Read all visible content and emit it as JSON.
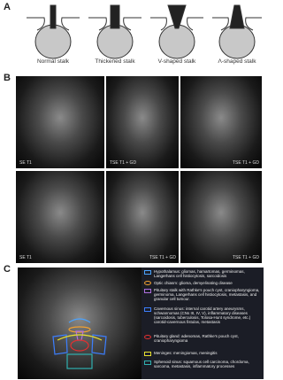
{
  "panels": {
    "a": {
      "label": "A",
      "stalks": [
        "Normal stalk",
        "Thickened stalk",
        "V-shaped stalk",
        "Λ-shaped stalk"
      ]
    },
    "b": {
      "label": "B",
      "images": [
        [
          "SE T1",
          "TSE T1 + GD",
          "TSE T1 + GD"
        ],
        [
          "SE T1",
          "TSE T1 + GD",
          "TSE T1 + GD"
        ]
      ]
    },
    "c": {
      "label": "C",
      "legend": [
        "Hypothalamus: gliomas, hamartomas, germinomas, Langerhans cell histiocytosis, sarcoidosis",
        "Optic chiasm: glioma, demyelinating disease",
        "Pituitary stalk with Rathke's pouch cyst, craniopharyngioma, germinoma, Langerhans cell histiocytosis, metastasis, and granular cell tumour.",
        "Cavernous sinus: internal carotid artery aneurysms, schwannomas (CNs III, IV, V), inflammatory diseases (sarcoidosis, tuberculosis, Tolosa-Hunt syndrome, etc.) carotid-cavernous fistulas, metastasis",
        "Pituitary gland: adenomas, Rathke's pouch cyst, craniopharyngioma",
        "Meninges: meningiomas, meningitis",
        "Sphenoid sinus: squamous cell carcinoma, chordoma, sarcoma, metastasis, inflammatory processes"
      ]
    }
  }
}
